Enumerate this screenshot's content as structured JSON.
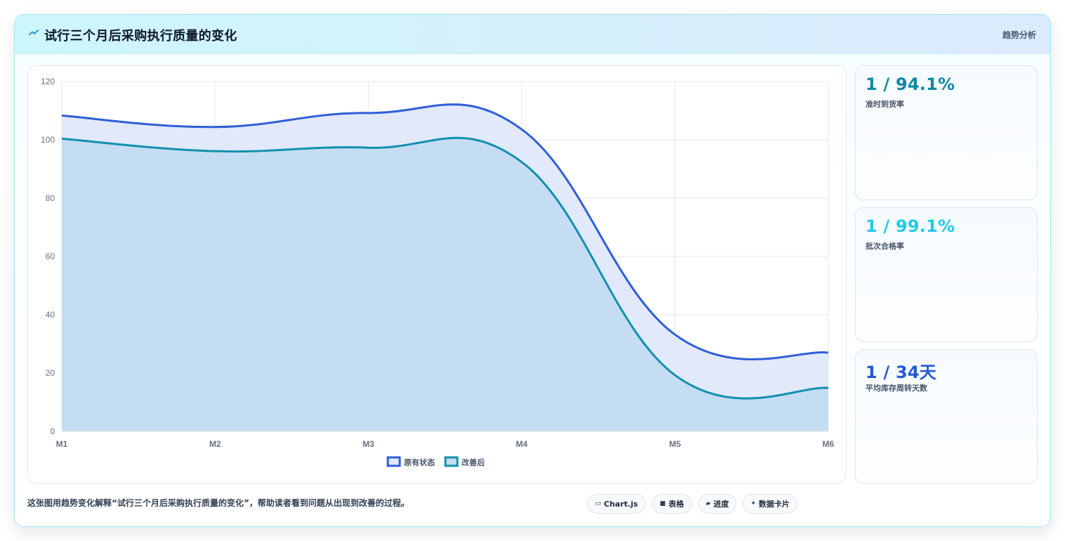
{
  "header": {
    "title": "试行三个月后采购执行质量的变化",
    "badge": "趋势分析"
  },
  "chart_data": {
    "type": "area",
    "categories": [
      "M1",
      "M2",
      "M3",
      "M4",
      "M5",
      "M6"
    ],
    "ylim": [
      0,
      120
    ],
    "yticks": [
      0,
      20,
      40,
      60,
      80,
      100,
      120
    ],
    "grid": true,
    "legend_position": "bottom",
    "series": [
      {
        "name": "原有状态",
        "values": [
          108.3,
          104.4,
          109.2,
          103.6,
          33.2,
          27.0
        ],
        "color": "#2f5fd6",
        "fill": "#dfe8fb"
      },
      {
        "name": "改善后",
        "values": [
          100.4,
          96.1,
          97.3,
          92.4,
          19.3,
          14.9
        ],
        "color": "#1191ad",
        "fill": "#c3dcf2"
      }
    ]
  },
  "kpis": [
    {
      "value": "1 / 94.1%",
      "label": "准时到货率",
      "color": "#0e89a4"
    },
    {
      "value": "1 / 99.1%",
      "label": "批次合格率",
      "color": "#22cbe6"
    },
    {
      "value": "1 / 34天",
      "label": "平均库存周转天数",
      "color": "#2459d4"
    }
  ],
  "footer": {
    "caption": "这张图用趋势变化解释“试行三个月后采购执行质量的变化”，帮助读者看到问题从出现到改善的过程。",
    "chips": [
      {
        "icon": "▭",
        "label": "Chart.js"
      },
      {
        "icon": "■",
        "label": "表格"
      },
      {
        "icon": "▰",
        "label": "进度"
      },
      {
        "icon": "✦",
        "label": "数据卡片"
      }
    ]
  }
}
